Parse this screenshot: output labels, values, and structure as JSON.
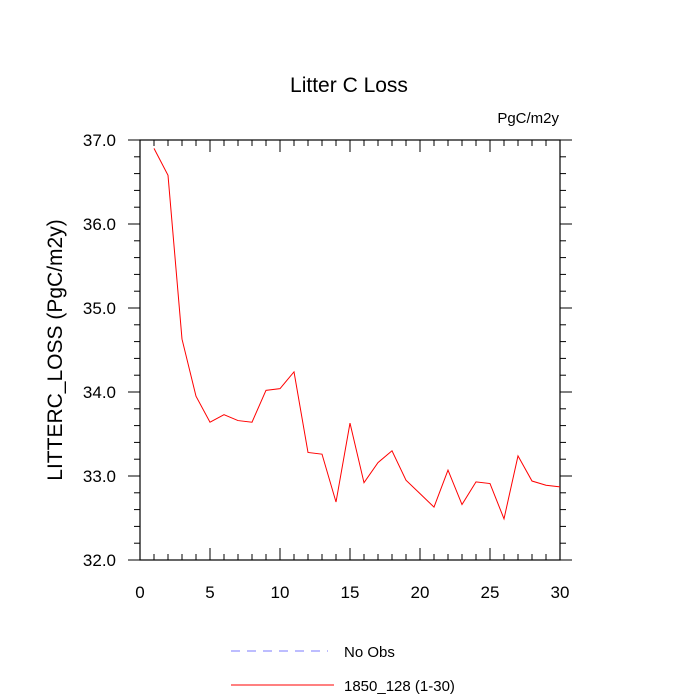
{
  "chart_data": {
    "type": "line",
    "title": "Litter C Loss",
    "units_label": "PgC/m2y",
    "xlabel": "",
    "ylabel": "LITTERC_LOSS  (PgC/m2y)",
    "xlim": [
      0,
      30
    ],
    "ylim": [
      32.0,
      37.0
    ],
    "x_ticks": [
      "0",
      "5",
      "10",
      "15",
      "20",
      "25",
      "30"
    ],
    "y_ticks": [
      "32.0",
      "33.0",
      "34.0",
      "35.0",
      "36.0",
      "37.0"
    ],
    "grid": false,
    "legend_position": "bottom",
    "series": [
      {
        "name": "1850_128 (1-30)",
        "color": "#ff0000",
        "style": "solid",
        "x": [
          1,
          2,
          3,
          4,
          5,
          6,
          7,
          8,
          9,
          10,
          11,
          12,
          13,
          14,
          15,
          16,
          17,
          18,
          19,
          20,
          21,
          22,
          23,
          24,
          25,
          26,
          27,
          28,
          29,
          30
        ],
        "values": [
          36.9,
          36.58,
          34.63,
          33.95,
          33.64,
          33.73,
          33.66,
          33.64,
          34.02,
          34.04,
          34.24,
          33.28,
          33.26,
          32.69,
          33.63,
          32.92,
          33.16,
          33.3,
          32.95,
          32.79,
          32.63,
          33.07,
          32.66,
          32.93,
          32.91,
          32.49,
          33.24,
          32.94,
          32.89,
          32.87
        ]
      },
      {
        "name": "No Obs",
        "color": "#7b7bff",
        "style": "dashed",
        "x": [],
        "values": []
      }
    ]
  }
}
